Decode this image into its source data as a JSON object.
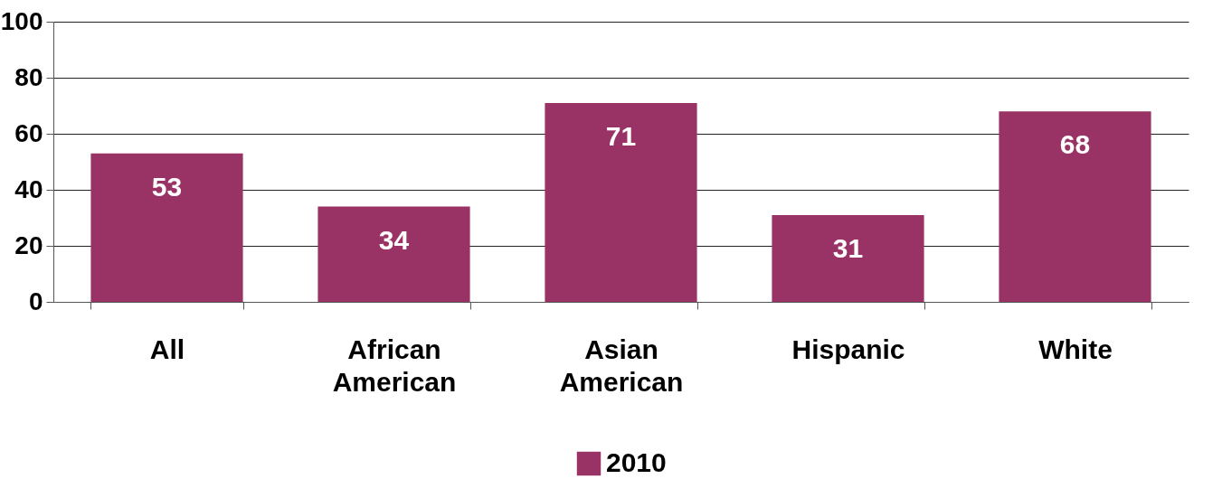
{
  "chart_data": {
    "type": "bar",
    "categories": [
      "All",
      "African American",
      "Asian American",
      "Hispanic",
      "White"
    ],
    "series": [
      {
        "name": "2010",
        "color": "#993366",
        "values": [
          53,
          34,
          71,
          31,
          68
        ]
      }
    ],
    "ylim": [
      0,
      100
    ],
    "yticks": [
      0,
      20,
      40,
      60,
      80,
      100
    ],
    "grid": "y",
    "legend": "bottom",
    "data_labels": true
  }
}
